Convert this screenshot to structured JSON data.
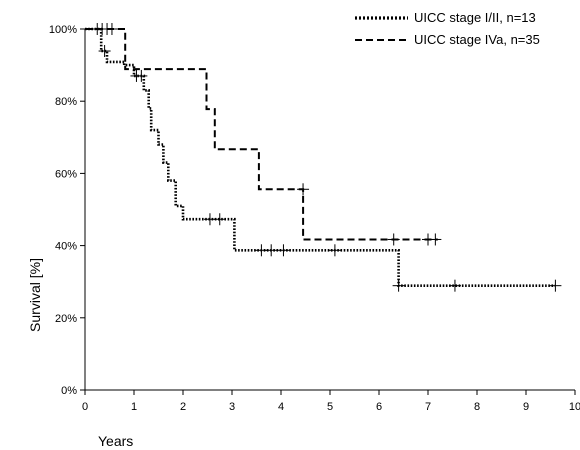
{
  "chart_data": {
    "type": "line",
    "title": "",
    "xlabel": "Years",
    "ylabel": "Survival [%]",
    "xlim": [
      0,
      10
    ],
    "ylim": [
      0,
      100
    ],
    "xticks": [
      "0",
      "1",
      "2",
      "3",
      "4",
      "5",
      "6",
      "7",
      "8",
      "9",
      "10"
    ],
    "yticks": [
      "0%",
      "20%",
      "40%",
      "60%",
      "80%",
      "100%"
    ],
    "grid": false,
    "legend_position": "top-right",
    "series": [
      {
        "name": "UICC stage I/II, n=13",
        "style": "dotted",
        "color": "#000000",
        "steps": [
          [
            0,
            100
          ],
          [
            0.33,
            100
          ],
          [
            0.33,
            93.9
          ],
          [
            0.45,
            93.9
          ],
          [
            0.45,
            90.9
          ],
          [
            0.8,
            90.9
          ],
          [
            0.8,
            90
          ],
          [
            1.0,
            90
          ],
          [
            1.0,
            87
          ],
          [
            1.2,
            87
          ],
          [
            1.2,
            83
          ],
          [
            1.3,
            83
          ],
          [
            1.3,
            78
          ],
          [
            1.35,
            78
          ],
          [
            1.35,
            72
          ],
          [
            1.5,
            72
          ],
          [
            1.5,
            68
          ],
          [
            1.6,
            68
          ],
          [
            1.6,
            63
          ],
          [
            1.7,
            63
          ],
          [
            1.7,
            58
          ],
          [
            1.85,
            58
          ],
          [
            1.85,
            51
          ],
          [
            2.0,
            51
          ],
          [
            2.0,
            47.3
          ],
          [
            3.05,
            47.3
          ],
          [
            3.05,
            38.7
          ],
          [
            6.4,
            38.7
          ],
          [
            6.4,
            28.9
          ],
          [
            9.6,
            28.9
          ]
        ],
        "censored": [
          [
            0.25,
            100
          ],
          [
            0.45,
            100
          ],
          [
            0.4,
            93.9
          ],
          [
            1.05,
            87
          ],
          [
            1.15,
            87
          ],
          [
            2.55,
            47.3
          ],
          [
            2.75,
            47.3
          ],
          [
            3.6,
            38.7
          ],
          [
            3.8,
            38.7
          ],
          [
            4.05,
            38.7
          ],
          [
            5.1,
            38.7
          ],
          [
            6.4,
            28.9
          ],
          [
            7.55,
            28.9
          ],
          [
            9.6,
            28.9
          ]
        ]
      },
      {
        "name": "UICC stage IVa, n=35",
        "style": "dashed",
        "color": "#000000",
        "steps": [
          [
            0,
            100
          ],
          [
            0.82,
            100
          ],
          [
            0.82,
            88.9
          ],
          [
            2.48,
            88.9
          ],
          [
            2.48,
            77.8
          ],
          [
            2.65,
            77.8
          ],
          [
            2.65,
            66.7
          ],
          [
            3.55,
            66.7
          ],
          [
            3.55,
            55.6
          ],
          [
            4.45,
            55.6
          ],
          [
            4.45,
            41.7
          ],
          [
            7.2,
            41.7
          ]
        ],
        "censored": [
          [
            0.35,
            100
          ],
          [
            0.55,
            100
          ],
          [
            4.45,
            55.6
          ],
          [
            6.3,
            41.7
          ],
          [
            7.0,
            41.7
          ],
          [
            7.15,
            41.7
          ]
        ]
      }
    ]
  }
}
